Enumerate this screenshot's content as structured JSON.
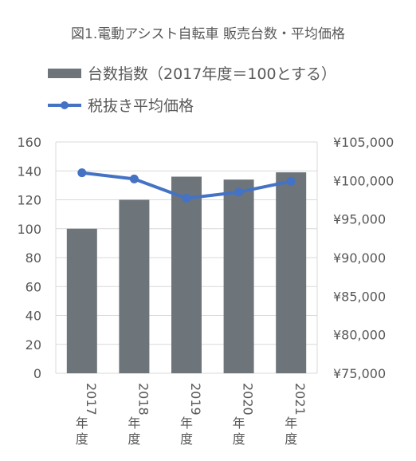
{
  "chart_data": {
    "type": "bar",
    "title": "図1.電動アシスト自転車 販売台数・平均価格",
    "categories": [
      "2017年度",
      "2018年度",
      "2019年度",
      "2020年度",
      "2021年度"
    ],
    "series": [
      {
        "name": "台数指数（2017年度＝100とする）",
        "type": "bar",
        "axis": "left",
        "values": [
          100,
          120,
          136,
          134,
          139
        ],
        "color": "#6e757a"
      },
      {
        "name": "税抜き平均価格",
        "type": "line",
        "axis": "right",
        "values": [
          101000,
          100200,
          97700,
          98500,
          99900
        ],
        "color": "#4472c4"
      }
    ],
    "y_left": {
      "min": 0,
      "max": 160,
      "ticks": [
        "0",
        "20",
        "40",
        "60",
        "80",
        "100",
        "120",
        "140",
        "160"
      ]
    },
    "y_right": {
      "min": 75000,
      "max": 105000,
      "ticks": [
        "¥75,000",
        "¥80,000",
        "¥85,000",
        "¥90,000",
        "¥95,000",
        "¥100,000",
        "¥105,000"
      ]
    },
    "grid": true,
    "legend_position": "top-left"
  }
}
